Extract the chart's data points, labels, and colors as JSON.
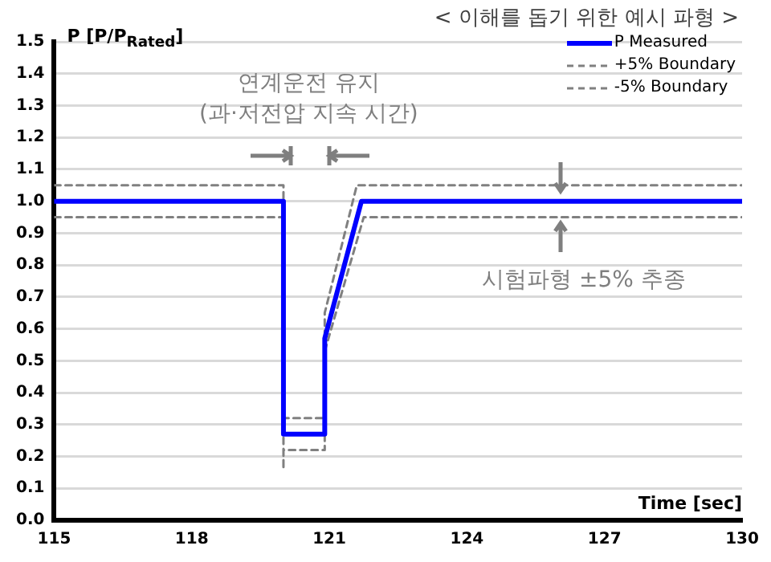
{
  "chart_data": {
    "type": "line",
    "title": "< 이해를 돕기 위한 예시 파형 >",
    "ylabel": "P [P/P$_{Rated}$]",
    "xlabel": "Time [sec]",
    "xlim": [
      115,
      130
    ],
    "xticks": [
      115,
      118,
      121,
      124,
      127,
      130
    ],
    "ylim": [
      0,
      1.5
    ],
    "yticks": [
      {
        "value": 0,
        "label": "0.0"
      },
      0.1,
      0.2,
      0.3,
      0.4,
      0.5,
      0.6,
      0.7,
      0.8,
      0.9,
      {
        "value": 1,
        "label": "1.0"
      },
      1.1,
      1.2,
      1.3,
      1.4,
      1.5
    ],
    "grid": "y",
    "legend": "top right",
    "marker": "none",
    "series": [
      {
        "name": "P Measured",
        "color": "#0000ff",
        "line_style": "solid",
        "x": [
          115,
          120,
          120,
          120.9,
          120.9,
          121.7,
          130
        ],
        "values": [
          1,
          1,
          0.27,
          0.27,
          0.57,
          1,
          1
        ]
      },
      {
        "name": "+5% Boundary",
        "color": "#808080",
        "line_style": "dashed",
        "x": [
          115,
          120,
          120,
          120.9,
          120.9,
          121.6,
          130
        ],
        "values": [
          1.05,
          1.05,
          0.32,
          0.32,
          0.65,
          1.05,
          1.05
        ]
      },
      {
        "name": "-5% Boundary",
        "color": "#808080",
        "line_style": "dashed",
        "x": [
          115,
          120,
          120,
          120,
          120.9,
          120.9,
          121.75,
          130
        ],
        "values": [
          0.95,
          0.95,
          0.16,
          0.22,
          0.22,
          0.53,
          0.95,
          0.95
        ]
      }
    ],
    "annotations": [
      "연계운전 유지\n(과·저전압 지속 시간)",
      "시험파형 ±5% 추종"
    ]
  }
}
